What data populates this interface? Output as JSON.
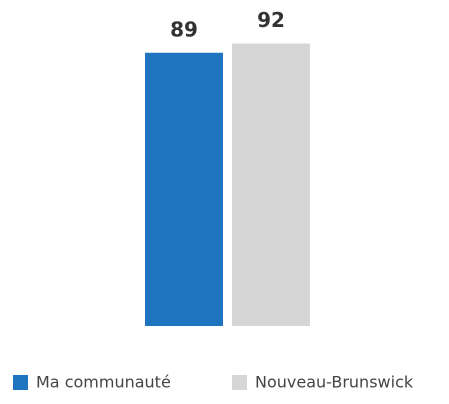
{
  "chart_data": {
    "type": "bar",
    "categories": [
      null
    ],
    "series": [
      {
        "name": "Ma communauté",
        "color": "#1f74c0",
        "values": [
          89
        ]
      },
      {
        "name": "Nouveau-Brunswick",
        "color": "#d6d6d6",
        "values": [
          92
        ]
      }
    ],
    "ylim": [
      0,
      100
    ]
  }
}
